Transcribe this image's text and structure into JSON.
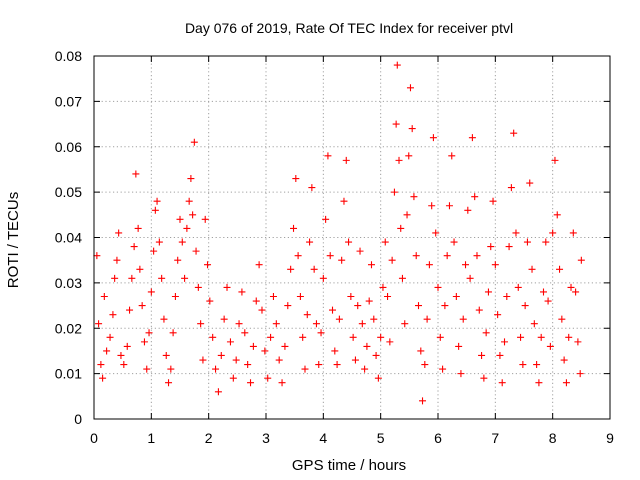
{
  "chart_data": {
    "type": "scatter",
    "title": "Day 076 of 2019, Rate Of TEC Index for receiver ptvl",
    "xlabel": "GPS time / hours",
    "ylabel": "ROTI / TECUs",
    "xlim": [
      0,
      9
    ],
    "ylim": [
      0,
      0.08
    ],
    "x_ticks": [
      0,
      1,
      2,
      3,
      4,
      5,
      6,
      7,
      8,
      9
    ],
    "x_tick_labels": [
      "0",
      "1",
      "2",
      "3",
      "4",
      "5",
      "6",
      "7",
      "8",
      "9"
    ],
    "y_ticks": [
      0,
      0.01,
      0.02,
      0.03,
      0.04,
      0.05,
      0.06,
      0.07,
      0.08
    ],
    "y_tick_labels": [
      "0",
      "0.01",
      "0.02",
      "0.03",
      "0.04",
      "0.05",
      "0.06",
      "0.07",
      "0.08"
    ],
    "grid": true,
    "marker": "+",
    "series": [
      {
        "name": "ROTI",
        "color": "#ff0000",
        "points": [
          [
            0.05,
            0.036
          ],
          [
            0.08,
            0.021
          ],
          [
            0.12,
            0.012
          ],
          [
            0.15,
            0.009
          ],
          [
            0.18,
            0.027
          ],
          [
            0.22,
            0.015
          ],
          [
            0.28,
            0.018
          ],
          [
            0.33,
            0.023
          ],
          [
            0.36,
            0.031
          ],
          [
            0.4,
            0.035
          ],
          [
            0.43,
            0.041
          ],
          [
            0.47,
            0.014
          ],
          [
            0.52,
            0.012
          ],
          [
            0.58,
            0.016
          ],
          [
            0.62,
            0.024
          ],
          [
            0.66,
            0.031
          ],
          [
            0.7,
            0.038
          ],
          [
            0.73,
            0.054
          ],
          [
            0.77,
            0.042
          ],
          [
            0.8,
            0.033
          ],
          [
            0.84,
            0.025
          ],
          [
            0.88,
            0.017
          ],
          [
            0.92,
            0.011
          ],
          [
            0.96,
            0.019
          ],
          [
            1.0,
            0.028
          ],
          [
            1.04,
            0.037
          ],
          [
            1.07,
            0.046
          ],
          [
            1.1,
            0.048
          ],
          [
            1.14,
            0.039
          ],
          [
            1.18,
            0.031
          ],
          [
            1.22,
            0.022
          ],
          [
            1.26,
            0.014
          ],
          [
            1.3,
            0.008
          ],
          [
            1.34,
            0.011
          ],
          [
            1.38,
            0.019
          ],
          [
            1.42,
            0.027
          ],
          [
            1.46,
            0.035
          ],
          [
            1.5,
            0.044
          ],
          [
            1.54,
            0.039
          ],
          [
            1.58,
            0.031
          ],
          [
            1.62,
            0.042
          ],
          [
            1.66,
            0.048
          ],
          [
            1.69,
            0.053
          ],
          [
            1.72,
            0.045
          ],
          [
            1.75,
            0.061
          ],
          [
            1.78,
            0.037
          ],
          [
            1.82,
            0.029
          ],
          [
            1.86,
            0.021
          ],
          [
            1.9,
            0.013
          ],
          [
            1.94,
            0.044
          ],
          [
            1.98,
            0.034
          ],
          [
            2.02,
            0.026
          ],
          [
            2.07,
            0.018
          ],
          [
            2.12,
            0.011
          ],
          [
            2.17,
            0.006
          ],
          [
            2.22,
            0.014
          ],
          [
            2.27,
            0.022
          ],
          [
            2.32,
            0.029
          ],
          [
            2.38,
            0.017
          ],
          [
            2.43,
            0.009
          ],
          [
            2.48,
            0.013
          ],
          [
            2.53,
            0.021
          ],
          [
            2.58,
            0.028
          ],
          [
            2.63,
            0.019
          ],
          [
            2.68,
            0.012
          ],
          [
            2.73,
            0.008
          ],
          [
            2.78,
            0.016
          ],
          [
            2.83,
            0.026
          ],
          [
            2.88,
            0.034
          ],
          [
            2.93,
            0.024
          ],
          [
            2.98,
            0.015
          ],
          [
            3.03,
            0.009
          ],
          [
            3.08,
            0.018
          ],
          [
            3.13,
            0.027
          ],
          [
            3.18,
            0.021
          ],
          [
            3.23,
            0.013
          ],
          [
            3.28,
            0.008
          ],
          [
            3.33,
            0.016
          ],
          [
            3.38,
            0.025
          ],
          [
            3.43,
            0.033
          ],
          [
            3.48,
            0.042
          ],
          [
            3.52,
            0.053
          ],
          [
            3.56,
            0.036
          ],
          [
            3.6,
            0.027
          ],
          [
            3.64,
            0.018
          ],
          [
            3.68,
            0.011
          ],
          [
            3.72,
            0.023
          ],
          [
            3.76,
            0.039
          ],
          [
            3.8,
            0.051
          ],
          [
            3.84,
            0.033
          ],
          [
            3.88,
            0.021
          ],
          [
            3.92,
            0.012
          ],
          [
            3.96,
            0.019
          ],
          [
            4.0,
            0.031
          ],
          [
            4.04,
            0.044
          ],
          [
            4.08,
            0.058
          ],
          [
            4.12,
            0.036
          ],
          [
            4.16,
            0.024
          ],
          [
            4.2,
            0.015
          ],
          [
            4.24,
            0.012
          ],
          [
            4.28,
            0.022
          ],
          [
            4.32,
            0.035
          ],
          [
            4.36,
            0.048
          ],
          [
            4.4,
            0.057
          ],
          [
            4.44,
            0.039
          ],
          [
            4.48,
            0.027
          ],
          [
            4.52,
            0.018
          ],
          [
            4.56,
            0.013
          ],
          [
            4.6,
            0.025
          ],
          [
            4.64,
            0.037
          ],
          [
            4.68,
            0.021
          ],
          [
            4.72,
            0.011
          ],
          [
            4.76,
            0.016
          ],
          [
            4.8,
            0.026
          ],
          [
            4.84,
            0.034
          ],
          [
            4.88,
            0.022
          ],
          [
            4.92,
            0.014
          ],
          [
            4.96,
            0.009
          ],
          [
            5.0,
            0.018
          ],
          [
            5.04,
            0.029
          ],
          [
            5.08,
            0.039
          ],
          [
            5.12,
            0.027
          ],
          [
            5.16,
            0.017
          ],
          [
            5.2,
            0.035
          ],
          [
            5.24,
            0.05
          ],
          [
            5.27,
            0.065
          ],
          [
            5.29,
            0.078
          ],
          [
            5.32,
            0.057
          ],
          [
            5.35,
            0.042
          ],
          [
            5.38,
            0.031
          ],
          [
            5.42,
            0.021
          ],
          [
            5.46,
            0.045
          ],
          [
            5.49,
            0.058
          ],
          [
            5.52,
            0.073
          ],
          [
            5.55,
            0.064
          ],
          [
            5.58,
            0.049
          ],
          [
            5.62,
            0.036
          ],
          [
            5.66,
            0.025
          ],
          [
            5.7,
            0.015
          ],
          [
            5.73,
            0.004
          ],
          [
            5.77,
            0.012
          ],
          [
            5.81,
            0.022
          ],
          [
            5.85,
            0.034
          ],
          [
            5.89,
            0.047
          ],
          [
            5.92,
            0.062
          ],
          [
            5.96,
            0.041
          ],
          [
            6.0,
            0.029
          ],
          [
            6.04,
            0.018
          ],
          [
            6.08,
            0.011
          ],
          [
            6.12,
            0.025
          ],
          [
            6.16,
            0.036
          ],
          [
            6.2,
            0.047
          ],
          [
            6.24,
            0.058
          ],
          [
            6.28,
            0.039
          ],
          [
            6.32,
            0.027
          ],
          [
            6.36,
            0.016
          ],
          [
            6.4,
            0.01
          ],
          [
            6.44,
            0.022
          ],
          [
            6.48,
            0.034
          ],
          [
            6.52,
            0.046
          ],
          [
            6.56,
            0.031
          ],
          [
            6.6,
            0.062
          ],
          [
            6.64,
            0.049
          ],
          [
            6.68,
            0.036
          ],
          [
            6.72,
            0.024
          ],
          [
            6.76,
            0.014
          ],
          [
            6.8,
            0.009
          ],
          [
            6.84,
            0.019
          ],
          [
            6.88,
            0.028
          ],
          [
            6.92,
            0.038
          ],
          [
            6.96,
            0.048
          ],
          [
            7.0,
            0.034
          ],
          [
            7.04,
            0.023
          ],
          [
            7.08,
            0.014
          ],
          [
            7.12,
            0.008
          ],
          [
            7.16,
            0.017
          ],
          [
            7.2,
            0.027
          ],
          [
            7.24,
            0.038
          ],
          [
            7.28,
            0.051
          ],
          [
            7.32,
            0.063
          ],
          [
            7.36,
            0.041
          ],
          [
            7.4,
            0.029
          ],
          [
            7.44,
            0.018
          ],
          [
            7.48,
            0.012
          ],
          [
            7.52,
            0.025
          ],
          [
            7.56,
            0.039
          ],
          [
            7.6,
            0.052
          ],
          [
            7.64,
            0.033
          ],
          [
            7.68,
            0.021
          ],
          [
            7.72,
            0.012
          ],
          [
            7.76,
            0.008
          ],
          [
            7.8,
            0.018
          ],
          [
            7.84,
            0.028
          ],
          [
            7.88,
            0.039
          ],
          [
            7.92,
            0.026
          ],
          [
            7.96,
            0.016
          ],
          [
            8.0,
            0.041
          ],
          [
            8.04,
            0.057
          ],
          [
            8.08,
            0.045
          ],
          [
            8.12,
            0.033
          ],
          [
            8.16,
            0.022
          ],
          [
            8.2,
            0.013
          ],
          [
            8.24,
            0.008
          ],
          [
            8.28,
            0.018
          ],
          [
            8.32,
            0.029
          ],
          [
            8.36,
            0.041
          ],
          [
            8.4,
            0.028
          ],
          [
            8.44,
            0.017
          ],
          [
            8.48,
            0.01
          ],
          [
            8.5,
            0.035
          ]
        ]
      }
    ]
  }
}
